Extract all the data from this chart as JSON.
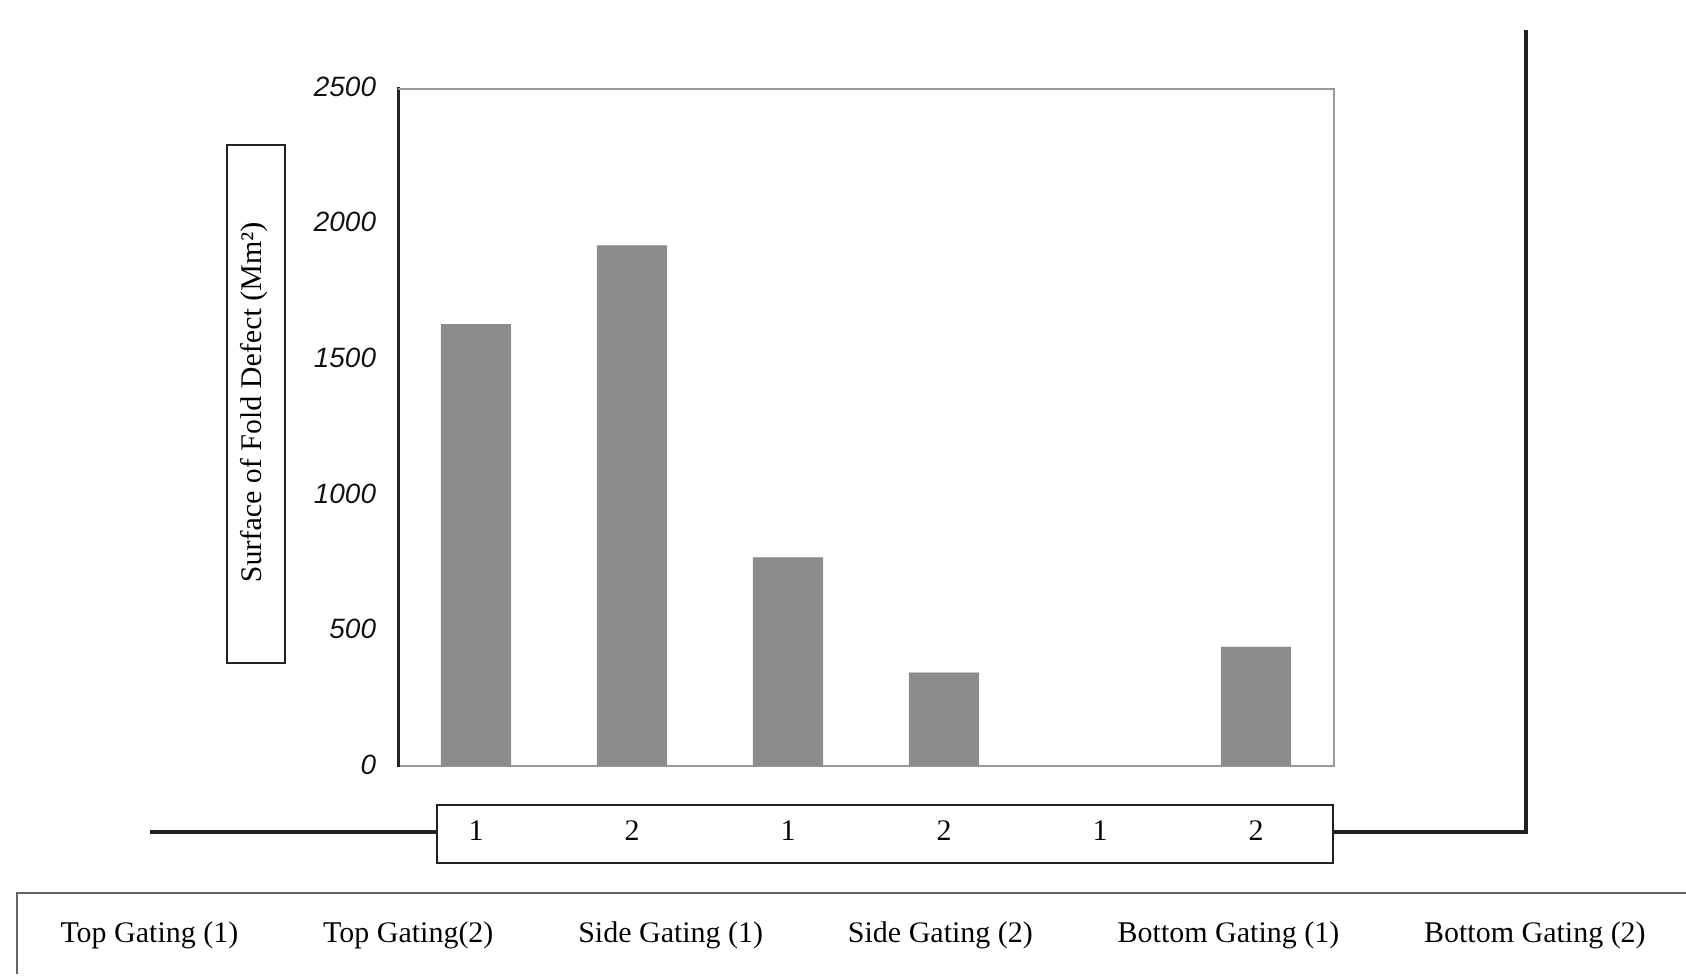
{
  "chart_data": {
    "type": "bar",
    "ylabel": "Surface of  Fold Defect (Mm²)",
    "categories": [
      "1",
      "2",
      "1",
      "2",
      "1",
      "2"
    ],
    "values": [
      1630,
      1920,
      770,
      345,
      0,
      440
    ],
    "color": "#8c8c8c",
    "ylim": [
      0,
      2500
    ],
    "yticks": [
      0,
      500,
      1000,
      1500,
      2000,
      2500
    ],
    "grid": false,
    "annotations": [
      "Top Gating (1)",
      "Top Gating(2)",
      "Side Gating (1)",
      "Side Gating (2)",
      "Bottom Gating (1)",
      "Bottom Gating (2)"
    ]
  }
}
